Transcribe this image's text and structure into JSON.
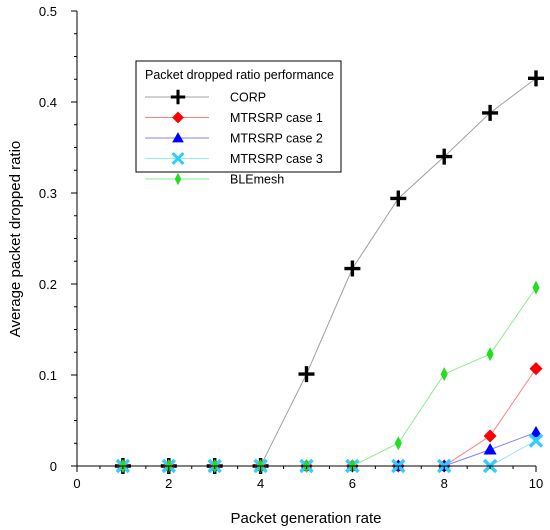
{
  "chart_data": {
    "type": "line",
    "title": "",
    "xlabel": "Packet generation rate",
    "ylabel": "Average packet dropped ratio",
    "xlim": [
      0,
      10
    ],
    "ylim": [
      0,
      0.5
    ],
    "x_ticks": [
      "0",
      "2",
      "4",
      "6",
      "8",
      "10"
    ],
    "y_ticks": [
      "0",
      "0.1",
      "0.2",
      "0.3",
      "0.4",
      "0.5"
    ],
    "grid": false,
    "legend": {
      "title": "Packet dropped ratio performance",
      "placement": "top-left"
    },
    "x": [
      1,
      2,
      3,
      4,
      5,
      6,
      7,
      8,
      9,
      10
    ],
    "series": [
      {
        "name": "CORP",
        "color": "#000000",
        "line_color": "#a0a0a0",
        "marker": "plus",
        "values": [
          0,
          0,
          0,
          0,
          0.101,
          0.217,
          0.294,
          0.34,
          0.388,
          0.426
        ]
      },
      {
        "name": "MTRSRP case 1",
        "color": "#ff0000",
        "line_color": "#ff8080",
        "marker": "diamond",
        "values": [
          0,
          0,
          0,
          0,
          0,
          0,
          0,
          0,
          0.033,
          0.107
        ]
      },
      {
        "name": "MTRSRP case 2",
        "color": "#0000ff",
        "line_color": "#8080ff",
        "marker": "triangle",
        "values": [
          0,
          0,
          0,
          0,
          0,
          0,
          0,
          0,
          0.018,
          0.037
        ]
      },
      {
        "name": "MTRSRP case 3",
        "color": "#33ccff",
        "line_color": "#99e6ff",
        "marker": "x",
        "values": [
          0,
          0,
          0,
          0,
          0,
          0,
          0,
          0,
          0,
          0.028
        ]
      },
      {
        "name": "BLEmesh",
        "color": "#22dd22",
        "line_color": "#88ee88",
        "marker": "thin-diamond",
        "values": [
          0,
          0,
          0,
          0,
          0,
          0,
          0.025,
          0.101,
          0.123,
          0.196
        ]
      }
    ]
  }
}
